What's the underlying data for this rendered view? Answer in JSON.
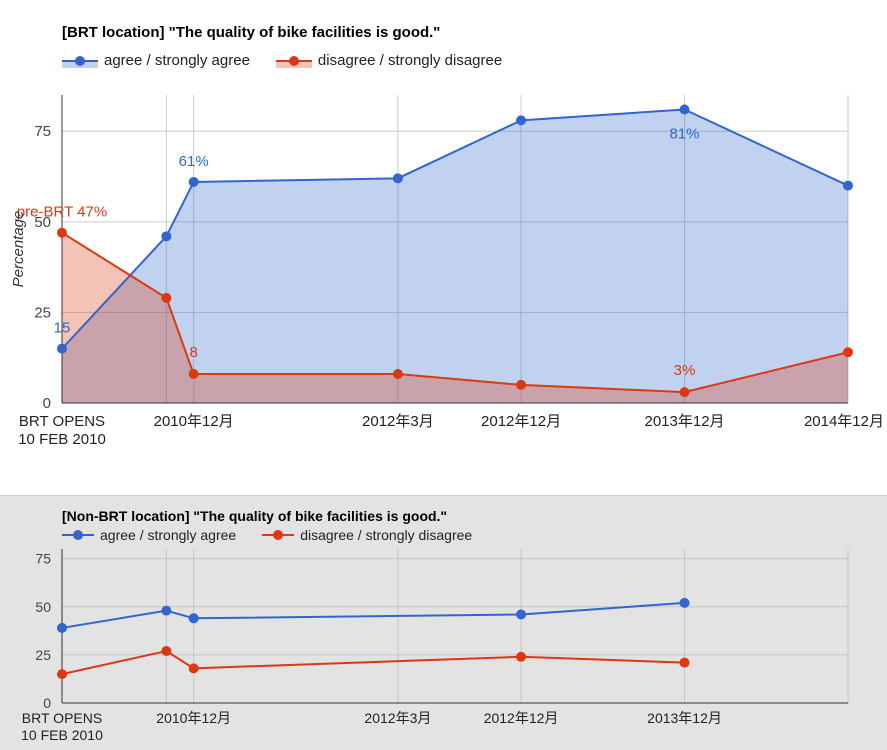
{
  "colors": {
    "agree": "#3366cc",
    "disagree": "#dc3912"
  },
  "chart_data": [
    {
      "type": "area",
      "title": "[BRT location] \"The quality of bike facilities is good.\"",
      "ylabel": "Percentage",
      "ylim": [
        0,
        85
      ],
      "yticks": [
        0,
        25,
        50,
        75
      ],
      "grid": true,
      "legend_position": "top",
      "x_categories": [
        "BRT OPENS\n10 FEB 2010",
        "2010年12月",
        "2012年3月",
        "2012年12月",
        "2013年12月",
        "2014年12月"
      ],
      "series": [
        {
          "name": "agree / strongly agree",
          "color": "#3366cc",
          "x": [
            "2010-02-10",
            "2010-10",
            "2010-12",
            "2012-03",
            "2012-12",
            "2013-12",
            "2014-12"
          ],
          "values": [
            15,
            46,
            61,
            62,
            78,
            81,
            60
          ],
          "labels": [
            {
              "index": 0,
              "text": "15"
            },
            {
              "index": 2,
              "text": "61%"
            },
            {
              "index": 5,
              "text": "81%"
            }
          ]
        },
        {
          "name": "disagree / strongly disagree",
          "color": "#dc3912",
          "x": [
            "2010-02-10",
            "2010-10",
            "2010-12",
            "2012-03",
            "2012-12",
            "2013-12",
            "2014-12"
          ],
          "values": [
            47,
            29,
            8,
            8,
            5,
            3,
            14
          ],
          "labels": [
            {
              "index": 0,
              "text": "pre-BRT 47%"
            },
            {
              "index": 2,
              "text": "8"
            },
            {
              "index": 5,
              "text": "3%"
            }
          ]
        }
      ]
    },
    {
      "type": "line",
      "title": "[Non-BRT location] \"The quality of bike facilities is good.\"",
      "ylim": [
        0,
        80
      ],
      "yticks": [
        0,
        25,
        50,
        75
      ],
      "grid": true,
      "legend_position": "top",
      "x_categories": [
        "BRT OPENS\n10 FEB 2010",
        "2010年12月",
        "2012年3月",
        "2012年12月",
        "2013年12月"
      ],
      "series": [
        {
          "name": "agree / strongly agree",
          "color": "#3366cc",
          "x": [
            "2010-02-10",
            "2010-10",
            "2010-12",
            "2012-12",
            "2013-12"
          ],
          "values": [
            39,
            48,
            44,
            46,
            52
          ]
        },
        {
          "name": "disagree / strongly disagree",
          "color": "#dc3912",
          "x": [
            "2010-02-10",
            "2010-10",
            "2010-12",
            "2012-12",
            "2013-12"
          ],
          "values": [
            15,
            27,
            18,
            24,
            21
          ]
        }
      ]
    }
  ]
}
